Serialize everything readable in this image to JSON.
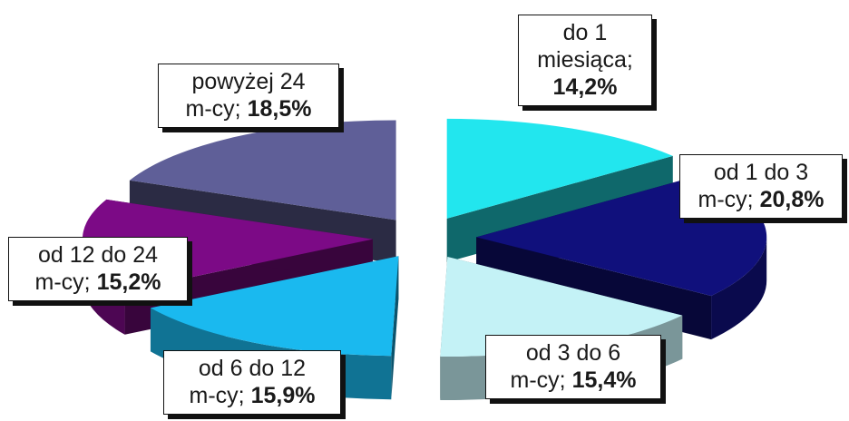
{
  "chart_data": {
    "type": "pie",
    "variant": "3d-exploded",
    "slices": [
      {
        "name": "do 1 miesiąca",
        "value": 14.2,
        "color": "#22e6ee",
        "label_lines": [
          "do 1",
          "miesiąca;"
        ],
        "pct_text": "14,2%"
      },
      {
        "name": "od 1 do 3 m-cy",
        "value": 20.8,
        "color": "#10107c",
        "label_lines": [
          "od 1 do 3"
        ],
        "label_tail": "m-cy; ",
        "pct_text": "20,8%"
      },
      {
        "name": "od 3 do 6 m-cy",
        "value": 15.4,
        "color": "#c4f2f6",
        "label_lines": [
          "od 3 do 6"
        ],
        "label_tail": "m-cy; ",
        "pct_text": "15,4%"
      },
      {
        "name": "od 6 do 12 m-cy",
        "value": 15.9,
        "color": "#1ab9ef",
        "label_lines": [
          "od 6 do 12"
        ],
        "label_tail": "m-cy; ",
        "pct_text": "15,9%"
      },
      {
        "name": "od 12 do 24 m-cy",
        "value": 15.2,
        "color": "#7c0a86",
        "label_lines": [
          "od 12 do 24"
        ],
        "label_tail": "m-cy; ",
        "pct_text": "15,2%"
      },
      {
        "name": "powyżej 24 m-cy",
        "value": 18.5,
        "color": "#5f5f98",
        "label_lines": [
          "powyżej 24"
        ],
        "label_tail": "m-cy; ",
        "pct_text": "18,5%"
      }
    ],
    "legend": "none"
  }
}
